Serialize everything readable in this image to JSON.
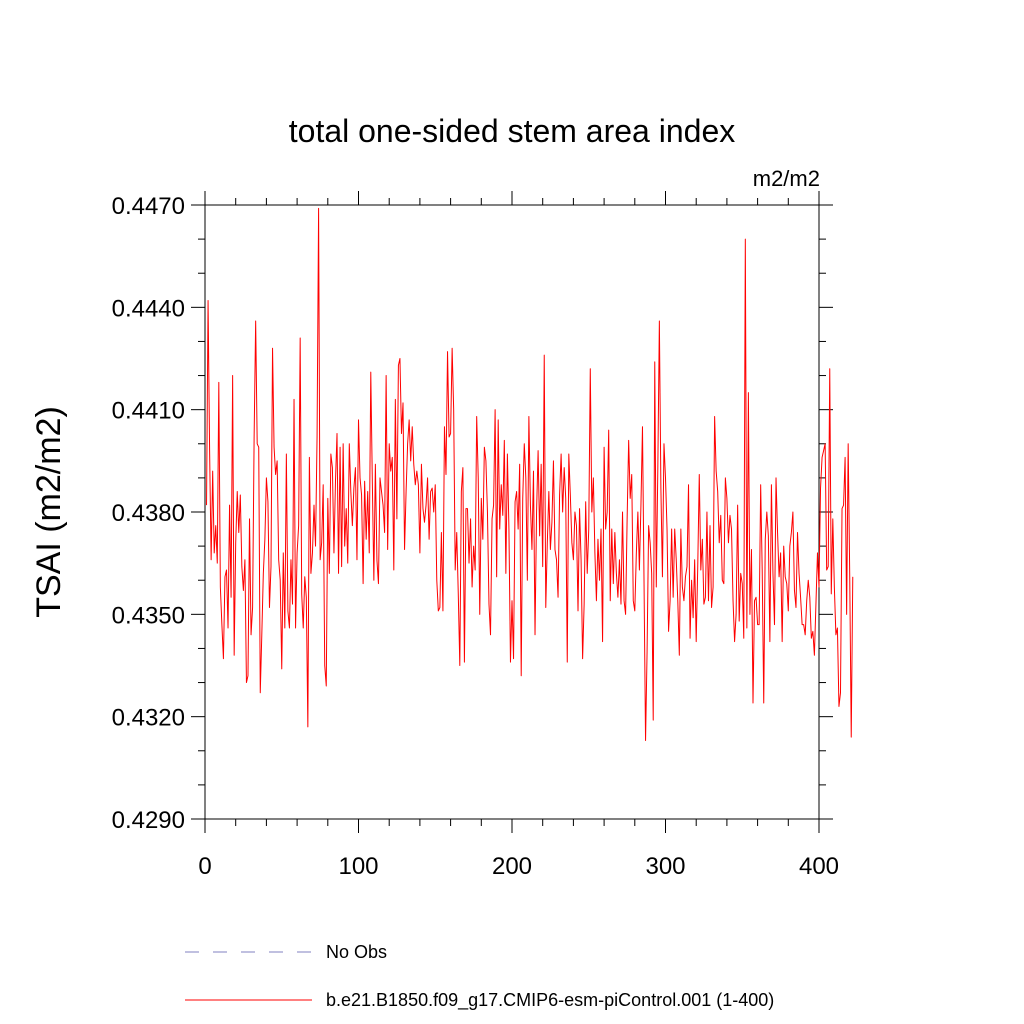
{
  "chart_data": {
    "type": "line",
    "title": "total one-sided stem area index",
    "units_label": "m2/m2",
    "ylabel": "TSAI  (m2/m2)",
    "xlabel": "",
    "xlim": [
      0,
      400
    ],
    "ylim": [
      0.429,
      0.447
    ],
    "x_ticks": [
      0,
      100,
      200,
      300,
      400
    ],
    "x_tick_labels": [
      "0",
      "100",
      "200",
      "300",
      "400"
    ],
    "y_ticks": [
      0.429,
      0.432,
      0.435,
      0.438,
      0.441,
      0.444,
      0.447
    ],
    "y_tick_labels": [
      "0.4290",
      "0.4320",
      "0.4350",
      "0.4380",
      "0.4410",
      "0.4440",
      "0.4470"
    ],
    "legend_position": "bottom",
    "legend": [
      {
        "label": "No Obs",
        "color": "#8080c0",
        "style": "dashed"
      },
      {
        "label": "b.e21.B1850.f09_g17.CMIP6-esm-piControl.001 (1-400)",
        "color": "#ff0000",
        "style": "solid"
      }
    ],
    "series": [
      {
        "name": "b.e21.B1850.f09_g17.CMIP6-esm-piControl.001 (1-400)",
        "color": "#ff0000",
        "x_start": 1,
        "values": [
          0.4382,
          0.4442,
          0.4398,
          0.4366,
          0.4392,
          0.4368,
          0.4376,
          0.4365,
          0.4418,
          0.4358,
          0.4347,
          0.4337,
          0.4361,
          0.4363,
          0.4346,
          0.4382,
          0.4355,
          0.442,
          0.4338,
          0.4371,
          0.4386,
          0.4374,
          0.4385,
          0.4364,
          0.4357,
          0.4366,
          0.433,
          0.4332,
          0.4378,
          0.4344,
          0.4352,
          0.4402,
          0.4436,
          0.44,
          0.4399,
          0.4327,
          0.4344,
          0.4362,
          0.4372,
          0.439,
          0.4383,
          0.4352,
          0.4364,
          0.4428,
          0.4399,
          0.4391,
          0.4395,
          0.4366,
          0.436,
          0.4334,
          0.4368,
          0.4346,
          0.4397,
          0.4351,
          0.4346,
          0.4366,
          0.4353,
          0.4413,
          0.4346,
          0.4368,
          0.4376,
          0.4431,
          0.4356,
          0.4346,
          0.4361,
          0.4355,
          0.4317,
          0.4396,
          0.4362,
          0.4368,
          0.4382,
          0.437,
          0.4402,
          0.4469,
          0.4366,
          0.4371,
          0.4388,
          0.4335,
          0.4329,
          0.4384,
          0.4362,
          0.4397,
          0.4393,
          0.4368,
          0.4389,
          0.4403,
          0.4362,
          0.4399,
          0.4364,
          0.44,
          0.437,
          0.4381,
          0.4365,
          0.44,
          0.4386,
          0.4376,
          0.4387,
          0.4393,
          0.4366,
          0.4407,
          0.439,
          0.4385,
          0.4359,
          0.4389,
          0.4372,
          0.4386,
          0.4368,
          0.4421,
          0.4389,
          0.436,
          0.4394,
          0.4366,
          0.4359,
          0.439,
          0.4386,
          0.4382,
          0.4374,
          0.442,
          0.4369,
          0.44,
          0.4392,
          0.4396,
          0.4363,
          0.4413,
          0.4378,
          0.4423,
          0.4425,
          0.4403,
          0.4412,
          0.4369,
          0.4386,
          0.44,
          0.4407,
          0.4395,
          0.4405,
          0.4394,
          0.4388,
          0.4392,
          0.4388,
          0.4368,
          0.4394,
          0.4381,
          0.4377,
          0.4382,
          0.439,
          0.4372,
          0.4386,
          0.4387,
          0.438,
          0.4388,
          0.436,
          0.4351,
          0.4352,
          0.4374,
          0.4351,
          0.4405,
          0.4391,
          0.4427,
          0.4402,
          0.4403,
          0.4428,
          0.441,
          0.4363,
          0.4374,
          0.4356,
          0.4335,
          0.4386,
          0.4393,
          0.4336,
          0.4381,
          0.4381,
          0.4365,
          0.4378,
          0.4358,
          0.437,
          0.4363,
          0.4408,
          0.439,
          0.435,
          0.4384,
          0.4372,
          0.4399,
          0.4395,
          0.438,
          0.4353,
          0.4344,
          0.4378,
          0.4382,
          0.441,
          0.4361,
          0.4407,
          0.4375,
          0.4388,
          0.4379,
          0.4401,
          0.4362,
          0.4397,
          0.4375,
          0.4336,
          0.4354,
          0.4337,
          0.4383,
          0.4386,
          0.4375,
          0.4394,
          0.4332,
          0.4384,
          0.44,
          0.439,
          0.436,
          0.4408,
          0.4382,
          0.4369,
          0.4392,
          0.4344,
          0.438,
          0.4398,
          0.4373,
          0.4394,
          0.4364,
          0.4426,
          0.4352,
          0.4371,
          0.4386,
          0.4369,
          0.4377,
          0.4395,
          0.4369,
          0.4366,
          0.4355,
          0.4385,
          0.4397,
          0.438,
          0.4393,
          0.4384,
          0.4336,
          0.4397,
          0.4385,
          0.4371,
          0.4366,
          0.438,
          0.4376,
          0.4351,
          0.4381,
          0.4366,
          0.4337,
          0.4353,
          0.4383,
          0.4362,
          0.4375,
          0.4422,
          0.438,
          0.439,
          0.4368,
          0.4354,
          0.4372,
          0.436,
          0.4375,
          0.4342,
          0.4399,
          0.4375,
          0.438,
          0.4404,
          0.4354,
          0.4375,
          0.4359,
          0.4374,
          0.4362,
          0.4355,
          0.4366,
          0.4353,
          0.438,
          0.4354,
          0.435,
          0.4378,
          0.4401,
          0.4384,
          0.4391,
          0.4354,
          0.4351,
          0.4368,
          0.438,
          0.4363,
          0.4382,
          0.4405,
          0.436,
          0.4313,
          0.4339,
          0.4376,
          0.4371,
          0.4362,
          0.4319,
          0.4424,
          0.4358,
          0.4393,
          0.4436,
          0.4387,
          0.4361,
          0.44,
          0.439,
          0.4375,
          0.4345,
          0.4354,
          0.4375,
          0.4355,
          0.4375,
          0.4366,
          0.4354,
          0.4338,
          0.4375,
          0.4358,
          0.4354,
          0.4361,
          0.4364,
          0.4388,
          0.4343,
          0.436,
          0.4349,
          0.4366,
          0.4342,
          0.4364,
          0.4391,
          0.4363,
          0.4372,
          0.4353,
          0.4355,
          0.438,
          0.4354,
          0.4376,
          0.4352,
          0.4358,
          0.4408,
          0.4392,
          0.4386,
          0.4371,
          0.4379,
          0.436,
          0.4359,
          0.439,
          0.4384,
          0.4371,
          0.4379,
          0.4375,
          0.4354,
          0.4342,
          0.435,
          0.4382,
          0.4348,
          0.4362,
          0.4359,
          0.4343,
          0.446,
          0.4346,
          0.4415,
          0.435,
          0.4369,
          0.4324,
          0.4354,
          0.4355,
          0.4347,
          0.4347,
          0.4388,
          0.4363,
          0.4324,
          0.4372,
          0.438,
          0.4373,
          0.4342,
          0.4388,
          0.4362,
          0.4347,
          0.439,
          0.4374,
          0.4361,
          0.4368,
          0.4342,
          0.437,
          0.4361,
          0.4359,
          0.4351,
          0.437,
          0.4374,
          0.438,
          0.4357,
          0.4352,
          0.4374,
          0.4362,
          0.4355,
          0.4347,
          0.4347,
          0.4344,
          0.4354,
          0.436,
          0.4355,
          0.4343,
          0.4345,
          0.4338,
          0.4353,
          0.4368,
          0.4358,
          0.4387,
          0.4396,
          0.4398,
          0.44,
          0.4363,
          0.4364,
          0.4422,
          0.4356,
          0.4378,
          0.4358,
          0.4344,
          0.4346,
          0.4323,
          0.4327,
          0.4381,
          0.4382,
          0.4396,
          0.435,
          0.44,
          0.4362,
          0.4314,
          0.4361
        ]
      }
    ]
  }
}
